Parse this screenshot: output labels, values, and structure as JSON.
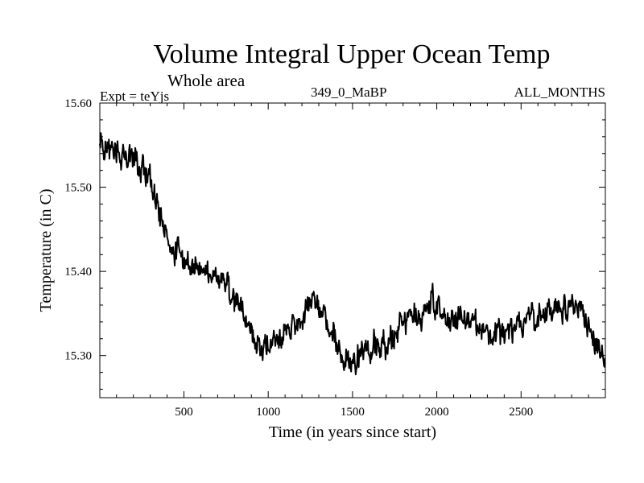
{
  "chart_data": {
    "type": "line",
    "title": "Volume Integral Upper Ocean Temp",
    "subtitle": "Whole area",
    "experiment": "Expt = teYjs",
    "period": "349_0_MaBP",
    "months": "ALL_MONTHS",
    "xlabel": "Time (in years since start)",
    "ylabel": "Temperature (in C)",
    "xlim": [
      1,
      3000
    ],
    "ylim": [
      15.25,
      15.6
    ],
    "x_ticks": [
      500,
      1000,
      1500,
      2000,
      2500
    ],
    "x_tick_labels": [
      "500",
      "1000",
      "1500",
      "2000",
      "2500"
    ],
    "y_ticks": [
      15.3,
      15.4,
      15.5,
      15.6
    ],
    "y_tick_labels": [
      "15.30",
      "15.40",
      "15.50",
      "15.60"
    ],
    "grid": false,
    "series": [
      {
        "name": "Volume integral upper ocean temperature",
        "sampling": "annual means (sketched from smoothed trend + noise)",
        "x": [
          0,
          100,
          200,
          300,
          350,
          400,
          500,
          600,
          700,
          800,
          900,
          950,
          1000,
          1100,
          1200,
          1270,
          1350,
          1400,
          1450,
          1500,
          1550,
          1600,
          1700,
          1800,
          1900,
          2000,
          2050,
          2100,
          2200,
          2300,
          2400,
          2500,
          2600,
          2700,
          2800,
          2850,
          2900,
          2950,
          3000
        ],
        "values": [
          15.545,
          15.545,
          15.535,
          15.51,
          15.475,
          15.44,
          15.41,
          15.405,
          15.395,
          15.37,
          15.33,
          15.31,
          15.315,
          15.32,
          15.345,
          15.375,
          15.345,
          15.315,
          15.295,
          15.29,
          15.305,
          15.31,
          15.315,
          15.34,
          15.35,
          15.365,
          15.345,
          15.345,
          15.35,
          15.325,
          15.325,
          15.335,
          15.345,
          15.35,
          15.36,
          15.355,
          15.34,
          15.305,
          15.29
        ]
      }
    ]
  }
}
